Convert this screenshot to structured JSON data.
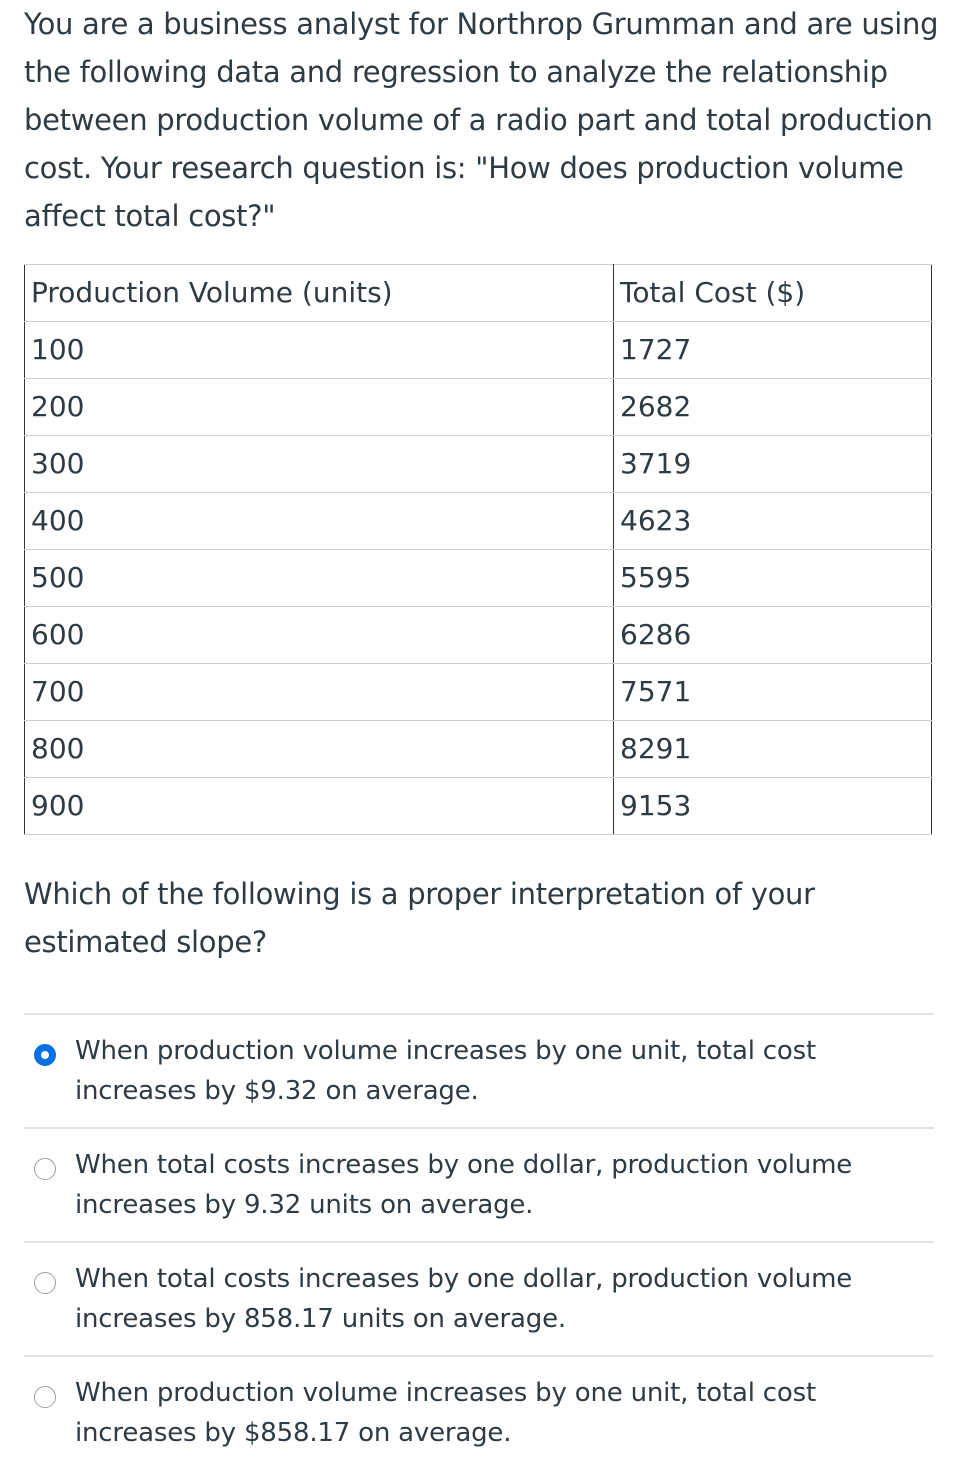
{
  "intro_text": "You are a business analyst for Northrop Grumman and are using the following data and regression to analyze the relationship between production volume of a radio part and total production cost. Your research question is: \"How does production volume affect total cost?\"",
  "table": {
    "headers": [
      "Production Volume (units)",
      "Total Cost ($)"
    ],
    "rows": [
      [
        "100",
        "1727"
      ],
      [
        "200",
        "2682"
      ],
      [
        "300",
        "3719"
      ],
      [
        "400",
        "4623"
      ],
      [
        "500",
        "5595"
      ],
      [
        "600",
        "6286"
      ],
      [
        "700",
        "7571"
      ],
      [
        "800",
        "8291"
      ],
      [
        "900",
        "9153"
      ]
    ]
  },
  "question_text": "Which of the following is a proper interpretation of your estimated slope?",
  "options": [
    {
      "label": "When production volume increases by one unit, total cost increases by $9.32 on average.",
      "selected": true
    },
    {
      "label": "When total costs increases by one dollar, production volume increases by 9.32 units on average.",
      "selected": false
    },
    {
      "label": "When total costs increases by one dollar, production volume increases by 858.17 units on average.",
      "selected": false
    },
    {
      "label": "When production volume increases by one unit, total cost increases by $858.17 on average.",
      "selected": false
    }
  ],
  "colors": {
    "text": "#2d3b45",
    "accent": "#0770e3",
    "divider": "#dfe3e6"
  }
}
